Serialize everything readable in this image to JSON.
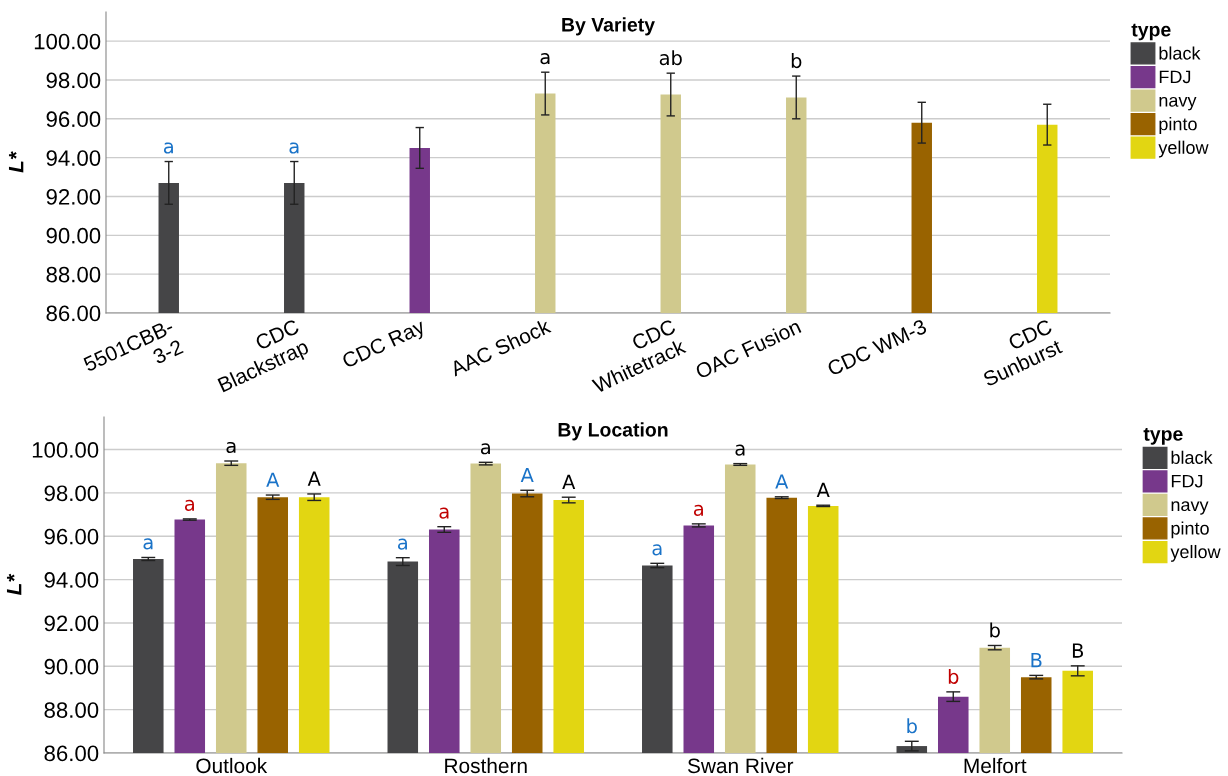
{
  "chart_data": [
    {
      "type": "bar",
      "title": "By Variety",
      "ylabel": "L*",
      "legend_title": "type",
      "legend": "top right",
      "grid": "y",
      "stacked": true,
      "categories": [
        "5501CBB-\n3-2",
        "CDC\nBlackstrap",
        "CDC Ray",
        "AAC Shock",
        "CDC\nWhitetrack",
        "OAC Fusion",
        "CDC WM-3",
        "CDC\nSunburst"
      ],
      "ylim": [
        86,
        101.5
      ],
      "yticks": [
        {
          "value": 86,
          "label": "86.00"
        },
        {
          "value": 88,
          "label": "88.00"
        },
        {
          "value": 90,
          "label": "90.00"
        },
        {
          "value": 92,
          "label": "92.00"
        },
        {
          "value": 94,
          "label": "94.00"
        },
        {
          "value": 96,
          "label": "96.00"
        },
        {
          "value": 98,
          "label": "98.00"
        },
        {
          "value": 100,
          "label": "100.00"
        }
      ],
      "series": [
        {
          "name": "black",
          "color": "#454547",
          "values": [
            92.7,
            92.7,
            null,
            null,
            null,
            null,
            null,
            null
          ],
          "errors": [
            1.1,
            1.1,
            null,
            null,
            null,
            null,
            null,
            null
          ],
          "value_labels": [
            "a",
            "a",
            null,
            null,
            null,
            null,
            null,
            null
          ]
        },
        {
          "name": "FDJ",
          "color": "#77388b",
          "values": [
            null,
            null,
            94.5,
            null,
            null,
            null,
            null,
            null
          ],
          "errors": [
            null,
            null,
            1.05,
            null,
            null,
            null,
            null,
            null
          ],
          "value_labels": [
            null,
            null,
            null,
            null,
            null,
            null,
            null,
            null
          ]
        },
        {
          "name": "navy",
          "color": "#d0c98d",
          "values": [
            null,
            null,
            null,
            97.3,
            97.25,
            97.1,
            null,
            null
          ],
          "errors": [
            null,
            null,
            null,
            1.1,
            1.1,
            1.1,
            null,
            null
          ],
          "value_labels": [
            null,
            null,
            null,
            "a",
            "ab",
            "b",
            null,
            null
          ]
        },
        {
          "name": "pinto",
          "color": "#996300",
          "values": [
            null,
            null,
            null,
            null,
            null,
            null,
            95.8,
            null
          ],
          "errors": [
            null,
            null,
            null,
            null,
            null,
            null,
            1.05,
            null
          ],
          "value_labels": [
            null,
            null,
            null,
            null,
            null,
            null,
            null,
            null
          ]
        },
        {
          "name": "yellow",
          "color": "#e2d612",
          "values": [
            null,
            null,
            null,
            null,
            null,
            null,
            null,
            95.7
          ],
          "errors": [
            null,
            null,
            null,
            null,
            null,
            null,
            null,
            1.05
          ],
          "value_labels": [
            null,
            null,
            null,
            null,
            null,
            null,
            null,
            null
          ]
        }
      ]
    },
    {
      "type": "bar",
      "title": "By Location",
      "ylabel": "L*",
      "legend_title": "type",
      "legend": "top right",
      "grid": "y",
      "categories": [
        "Outlook",
        "Rosthern",
        "Swan River",
        "Melfort"
      ],
      "ylim": [
        86,
        101.5
      ],
      "yticks": [
        {
          "value": 86,
          "label": "86.00"
        },
        {
          "value": 88,
          "label": "88.00"
        },
        {
          "value": 90,
          "label": "90.00"
        },
        {
          "value": 92,
          "label": "92.00"
        },
        {
          "value": 94,
          "label": "94.00"
        },
        {
          "value": 96,
          "label": "96.00"
        },
        {
          "value": 98,
          "label": "98.00"
        },
        {
          "value": 100,
          "label": "100.00"
        }
      ],
      "series": [
        {
          "name": "black",
          "color": "#454547",
          "values": [
            94.95,
            94.83,
            94.65,
            86.32
          ],
          "errors": [
            0.07,
            0.18,
            0.1,
            0.22
          ],
          "value_labels": [
            "a",
            "a",
            "a",
            "b"
          ]
        },
        {
          "name": "FDJ",
          "color": "#77388b",
          "values": [
            96.77,
            96.31,
            96.5,
            88.6
          ],
          "errors": [
            0.03,
            0.13,
            0.07,
            0.22
          ],
          "value_labels": [
            "a",
            "a",
            "a",
            "b"
          ]
        },
        {
          "name": "navy",
          "color": "#d0c98d",
          "values": [
            99.37,
            99.35,
            99.31,
            90.86
          ],
          "errors": [
            0.1,
            0.06,
            0.04,
            0.1
          ],
          "value_labels": [
            "a",
            "a",
            "a",
            "b"
          ]
        },
        {
          "name": "pinto",
          "color": "#996300",
          "values": [
            97.8,
            97.97,
            97.78,
            89.5
          ],
          "errors": [
            0.1,
            0.15,
            0.04,
            0.08
          ],
          "value_labels": [
            "A",
            "A",
            "A",
            "B"
          ]
        },
        {
          "name": "yellow",
          "color": "#e2d612",
          "values": [
            97.8,
            97.67,
            97.4,
            89.79
          ],
          "errors": [
            0.15,
            0.13,
            0.03,
            0.23
          ],
          "value_labels": [
            "A",
            "A",
            "A",
            "B"
          ]
        }
      ]
    }
  ]
}
